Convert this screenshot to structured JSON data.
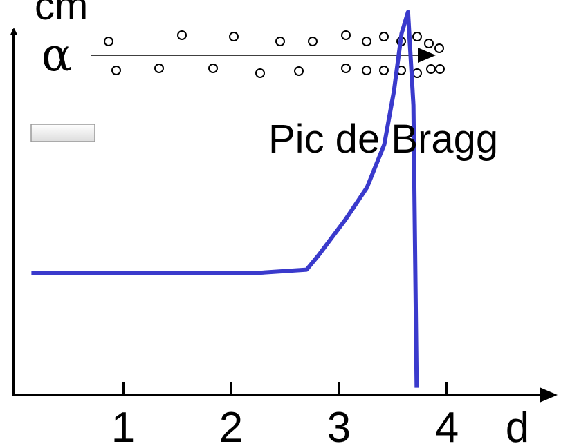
{
  "chart_data": {
    "type": "line",
    "y_label": "cm",
    "x_label": "d",
    "symbol": "α",
    "annotation": "Pic de Bragg",
    "x": [
      0.15,
      2.2,
      2.7,
      2.81,
      3.06,
      3.26,
      3.42,
      3.51,
      3.58,
      3.64,
      3.69,
      3.72
    ],
    "series": [
      {
        "name": null,
        "color": "#3a3acc",
        "values": [
          3.4,
          3.4,
          3.5,
          3.9,
          4.9,
          5.8,
          7.0,
          8.5,
          10.1,
          10.7,
          8.1,
          0.2
        ]
      }
    ],
    "xlim": [
      0,
      5
    ],
    "xticks": [
      1,
      2,
      3,
      4
    ],
    "ylim": [
      0,
      11
    ]
  }
}
